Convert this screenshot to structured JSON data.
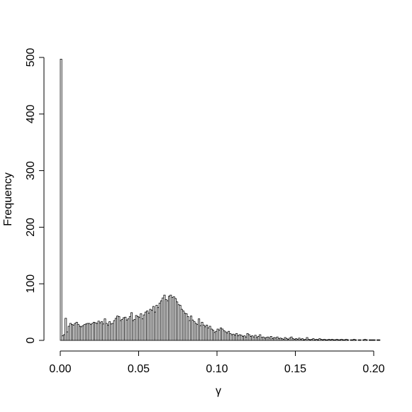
{
  "chart_data": {
    "type": "histogram",
    "xlabel": "γ",
    "ylabel": "Frequency",
    "bins": [
      0,
      0.001,
      0.002,
      0.003,
      0.004,
      0.005,
      0.006,
      0.007,
      0.008,
      0.009,
      0.01,
      0.011,
      0.012,
      0.013,
      0.014,
      0.015,
      0.016,
      0.017,
      0.018,
      0.019,
      0.02,
      0.021,
      0.022,
      0.023,
      0.024,
      0.025,
      0.026,
      0.027,
      0.028,
      0.029,
      0.03,
      0.031,
      0.032,
      0.033,
      0.034,
      0.035,
      0.036,
      0.037,
      0.038,
      0.039,
      0.04,
      0.041,
      0.042,
      0.043,
      0.044,
      0.045,
      0.046,
      0.047,
      0.048,
      0.049,
      0.05,
      0.051,
      0.052,
      0.053,
      0.054,
      0.055,
      0.056,
      0.057,
      0.058,
      0.059,
      0.06,
      0.061,
      0.062,
      0.063,
      0.064,
      0.065,
      0.066,
      0.067,
      0.068,
      0.069,
      0.07,
      0.071,
      0.072,
      0.073,
      0.074,
      0.075,
      0.076,
      0.077,
      0.078,
      0.079,
      0.08,
      0.081,
      0.082,
      0.083,
      0.084,
      0.085,
      0.086,
      0.087,
      0.088,
      0.089,
      0.09,
      0.091,
      0.092,
      0.093,
      0.094,
      0.095,
      0.096,
      0.097,
      0.098,
      0.099,
      0.1,
      0.101,
      0.102,
      0.103,
      0.104,
      0.105,
      0.106,
      0.107,
      0.108,
      0.109,
      0.11,
      0.111,
      0.112,
      0.113,
      0.114,
      0.115,
      0.116,
      0.117,
      0.118,
      0.119,
      0.12,
      0.121,
      0.122,
      0.123,
      0.124,
      0.125,
      0.126,
      0.127,
      0.128,
      0.129,
      0.13,
      0.131,
      0.132,
      0.133,
      0.134,
      0.135,
      0.136,
      0.137,
      0.138,
      0.139,
      0.14,
      0.141,
      0.142,
      0.143,
      0.144,
      0.145,
      0.146,
      0.147,
      0.148,
      0.149,
      0.15,
      0.151,
      0.152,
      0.153,
      0.154,
      0.155,
      0.156,
      0.157,
      0.158,
      0.159,
      0.16,
      0.161,
      0.162,
      0.163,
      0.164,
      0.165,
      0.166,
      0.167,
      0.168,
      0.169,
      0.17,
      0.171,
      0.172,
      0.173,
      0.174,
      0.175,
      0.176,
      0.177,
      0.178,
      0.179,
      0.18,
      0.181,
      0.182,
      0.183,
      0.184,
      0.185,
      0.186,
      0.187,
      0.188,
      0.189,
      0.19,
      0.191,
      0.192,
      0.193,
      0.194,
      0.195,
      0.196,
      0.197,
      0.198,
      0.199,
      0.2,
      0.201,
      0.202,
      0.203,
      0.204
    ],
    "counts": [
      497,
      8,
      10,
      39,
      15,
      25,
      30,
      28,
      27,
      30,
      32,
      28,
      25,
      24,
      26,
      28,
      29,
      30,
      30,
      28,
      30,
      32,
      31,
      30,
      34,
      31,
      33,
      29,
      38,
      30,
      27,
      33,
      29,
      30,
      35,
      39,
      43,
      42,
      35,
      37,
      40,
      41,
      36,
      38,
      42,
      49,
      35,
      37,
      44,
      42,
      41,
      47,
      38,
      45,
      50,
      52,
      48,
      55,
      53,
      60,
      50,
      62,
      58,
      66,
      70,
      75,
      80,
      72,
      70,
      78,
      80,
      76,
      77,
      74,
      68,
      63,
      62,
      55,
      52,
      48,
      47,
      42,
      35,
      43,
      36,
      33,
      30,
      28,
      38,
      26,
      32,
      27,
      24,
      27,
      22,
      25,
      20,
      18,
      14,
      16,
      20,
      18,
      22,
      20,
      17,
      15,
      13,
      16,
      12,
      10,
      11,
      9,
      12,
      8,
      10,
      9,
      7,
      8,
      6,
      12,
      10,
      7,
      8,
      6,
      9,
      5,
      7,
      10,
      5,
      6,
      4,
      5,
      6,
      4,
      7,
      3,
      5,
      4,
      6,
      3,
      4,
      3,
      2,
      5,
      3,
      2,
      4,
      6,
      3,
      2,
      3,
      2,
      4,
      2,
      3,
      1,
      2,
      5,
      2,
      1,
      2,
      3,
      1,
      2,
      1,
      3,
      2,
      1,
      2,
      1,
      1,
      2,
      1,
      2,
      1,
      1,
      2,
      1,
      1,
      2,
      1,
      1,
      2,
      1,
      0,
      1,
      1,
      2,
      1,
      0,
      1,
      1,
      0,
      1,
      2,
      1,
      0,
      1,
      1,
      1,
      1,
      0,
      1,
      1
    ],
    "xlim": [
      0,
      0.2
    ],
    "xticks": [
      {
        "value": 0,
        "label": "0.00"
      },
      {
        "value": 0.05,
        "label": "0.05"
      },
      {
        "value": 0.1,
        "label": "0.10"
      },
      {
        "value": 0.15,
        "label": "0.15"
      },
      {
        "value": 0.2,
        "label": "0.20"
      }
    ],
    "ylim": [
      0,
      500
    ],
    "yticks": [
      0,
      100,
      200,
      300,
      400,
      500
    ],
    "color": "#ffffff"
  }
}
